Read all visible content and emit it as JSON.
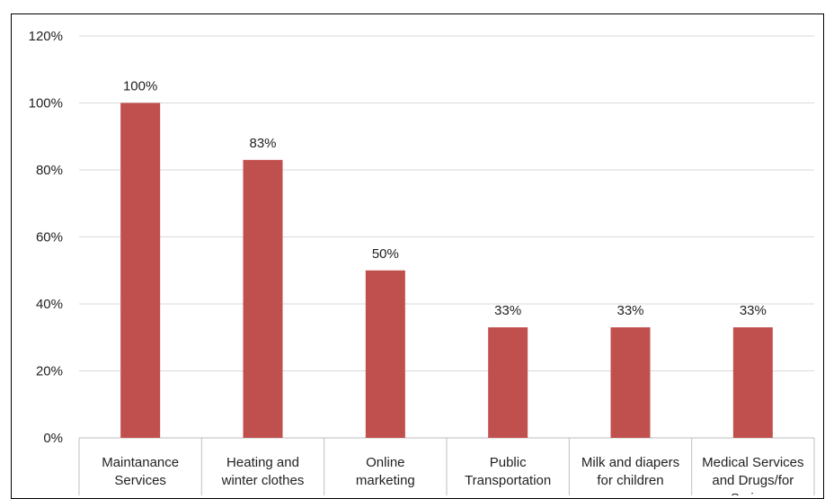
{
  "chart_data": {
    "type": "bar",
    "title": "",
    "xlabel": "",
    "ylabel": "",
    "categories": [
      [
        "Maintanance",
        "Services"
      ],
      [
        "Heating and",
        "winter clothes"
      ],
      [
        "Online",
        "marketing"
      ],
      [
        "Public",
        "Transportation"
      ],
      [
        "Milk and diapers",
        "for children"
      ],
      [
        "Medical Services",
        "and Drugs/for",
        "Syrians"
      ]
    ],
    "values": [
      1.0,
      0.83,
      0.5,
      0.33,
      0.33,
      0.33
    ],
    "data_labels": [
      "100%",
      "83%",
      "50%",
      "33%",
      "33%",
      "33%"
    ],
    "ylim": [
      0,
      1.2
    ],
    "yticks": [
      0,
      0.2,
      0.4,
      0.6,
      0.8,
      1.0,
      1.2
    ],
    "ytick_labels": [
      "0%",
      "20%",
      "40%",
      "60%",
      "80%",
      "100%",
      "120%"
    ],
    "grid": true,
    "bar_color": "#c0504d",
    "grid_color": "#d9d9d9"
  }
}
